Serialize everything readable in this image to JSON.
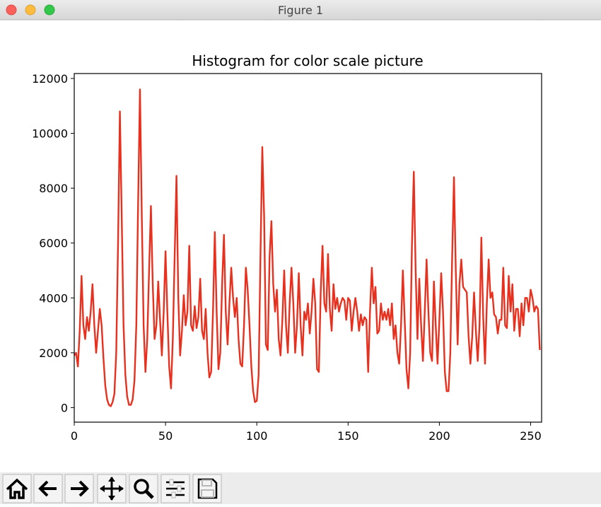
{
  "window_title": "Figure 1",
  "chart_data": {
    "type": "line",
    "title": "Histogram for color scale picture",
    "color": "#e8301f",
    "x": [
      0,
      1,
      2,
      3,
      4,
      5,
      6,
      7,
      8,
      9,
      10,
      11,
      12,
      13,
      14,
      15,
      16,
      17,
      18,
      19,
      20,
      21,
      22,
      23,
      24,
      25,
      26,
      27,
      28,
      29,
      30,
      31,
      32,
      33,
      34,
      35,
      36,
      37,
      38,
      39,
      40,
      41,
      42,
      43,
      44,
      45,
      46,
      47,
      48,
      49,
      50,
      51,
      52,
      53,
      54,
      55,
      56,
      57,
      58,
      59,
      60,
      61,
      62,
      63,
      64,
      65,
      66,
      67,
      68,
      69,
      70,
      71,
      72,
      73,
      74,
      75,
      76,
      77,
      78,
      79,
      80,
      81,
      82,
      83,
      84,
      85,
      86,
      87,
      88,
      89,
      90,
      91,
      92,
      93,
      94,
      95,
      96,
      97,
      98,
      99,
      100,
      101,
      102,
      103,
      104,
      105,
      106,
      107,
      108,
      109,
      110,
      111,
      112,
      113,
      114,
      115,
      116,
      117,
      118,
      119,
      120,
      121,
      122,
      123,
      124,
      125,
      126,
      127,
      128,
      129,
      130,
      131,
      132,
      133,
      134,
      135,
      136,
      137,
      138,
      139,
      140,
      141,
      142,
      143,
      144,
      145,
      146,
      147,
      148,
      149,
      150,
      151,
      152,
      153,
      154,
      155,
      156,
      157,
      158,
      159,
      160,
      161,
      162,
      163,
      164,
      165,
      166,
      167,
      168,
      169,
      170,
      171,
      172,
      173,
      174,
      175,
      176,
      177,
      178,
      179,
      180,
      181,
      182,
      183,
      184,
      185,
      186,
      187,
      188,
      189,
      190,
      191,
      192,
      193,
      194,
      195,
      196,
      197,
      198,
      199,
      200,
      201,
      202,
      203,
      204,
      205,
      206,
      207,
      208,
      209,
      210,
      211,
      212,
      213,
      214,
      215,
      216,
      217,
      218,
      219,
      220,
      221,
      222,
      223,
      224,
      225,
      226,
      227,
      228,
      229,
      230,
      231,
      232,
      233,
      234,
      235,
      236,
      237,
      238,
      239,
      240,
      241,
      242,
      243,
      244,
      245,
      246,
      247,
      248,
      249,
      250,
      251,
      252,
      253,
      254,
      255
    ],
    "values": [
      1900,
      2000,
      1500,
      2800,
      4800,
      3000,
      2500,
      3300,
      2800,
      3500,
      4500,
      3000,
      2000,
      2800,
      3600,
      3000,
      1800,
      800,
      300,
      100,
      50,
      200,
      500,
      2000,
      6000,
      10800,
      7000,
      3000,
      1200,
      400,
      100,
      100,
      300,
      1000,
      3000,
      7500,
      11600,
      7000,
      3000,
      1300,
      2500,
      5000,
      7350,
      4500,
      2500,
      3000,
      4600,
      3200,
      1900,
      3500,
      5700,
      3500,
      1500,
      700,
      2500,
      5500,
      8450,
      4000,
      1900,
      2800,
      4100,
      3000,
      3500,
      5900,
      3000,
      2800,
      3700,
      2900,
      3300,
      4700,
      2800,
      2500,
      3600,
      2000,
      1100,
      1300,
      3500,
      6400,
      3500,
      1400,
      2000,
      4500,
      6300,
      3500,
      2300,
      3800,
      5100,
      4000,
      3300,
      4000,
      2500,
      1600,
      1500,
      3000,
      5100,
      4300,
      3000,
      1500,
      600,
      200,
      250,
      1200,
      5500,
      9500,
      7000,
      2300,
      2100,
      5500,
      6800,
      4500,
      3500,
      4300,
      2500,
      1900,
      3200,
      5000,
      3000,
      2000,
      3800,
      5100,
      3800,
      2000,
      3000,
      4900,
      3000,
      1900,
      3500,
      3200,
      3800,
      2700,
      3500,
      4700,
      3800,
      1400,
      1300,
      4200,
      5900,
      3800,
      3500,
      5600,
      3600,
      2800,
      4500,
      3600,
      4000,
      3500,
      3800,
      4000,
      3900,
      3200,
      4000,
      3900,
      2800,
      3500,
      4000,
      3500,
      2800,
      3400,
      3000,
      3300,
      3200,
      1300,
      3500,
      5100,
      3800,
      4400,
      2700,
      2800,
      3800,
      3200,
      3500,
      3200,
      3600,
      3000,
      3800,
      2500,
      3000,
      2000,
      1600,
      3000,
      5000,
      3200,
      1400,
      700,
      2000,
      6000,
      8600,
      5000,
      2500,
      4700,
      3000,
      1700,
      3500,
      5400,
      3500,
      2000,
      1700,
      4600,
      3000,
      1600,
      3200,
      4900,
      3500,
      1300,
      600,
      600,
      2000,
      5500,
      8400,
      5000,
      2300,
      4500,
      5400,
      4400,
      4300,
      4200,
      2600,
      1600,
      2600,
      4200,
      2800,
      1700,
      3000,
      6200,
      3300,
      1600,
      3800,
      5400,
      4000,
      4200,
      3400,
      3300,
      2700,
      3200,
      3200,
      5100,
      3000,
      2900,
      4800,
      3500,
      4500,
      2800,
      3600,
      3600,
      2600,
      3800,
      3000,
      4000,
      4000,
      3500,
      4300,
      4000,
      3500,
      3700,
      3600,
      2100
    ],
    "xlim": [
      0,
      256
    ],
    "ylim": [
      -530,
      12180
    ],
    "xticks": [
      0,
      50,
      100,
      150,
      200,
      250
    ],
    "yticks": [
      0,
      2000,
      4000,
      6000,
      8000,
      10000,
      12000
    ]
  }
}
